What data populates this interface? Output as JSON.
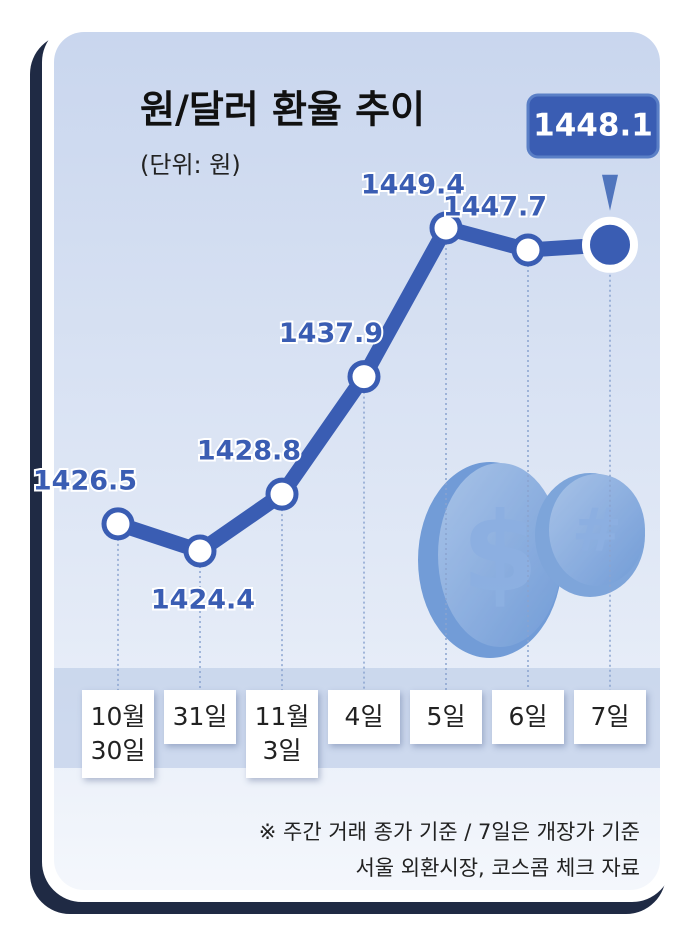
{
  "chart_data": {
    "type": "line",
    "title": "원/달러 환율 추이",
    "subtitle": "(단위: 원)",
    "categories": [
      "10월 30일",
      "31일",
      "11월 3일",
      "4일",
      "5일",
      "6일",
      "7일"
    ],
    "values": [
      1426.5,
      1424.4,
      1428.8,
      1437.9,
      1449.4,
      1447.7,
      1448.1
    ],
    "color": "#3a5db3",
    "notes": [
      "※ 주간 거래 종가 기준 / 7일은 개장가 기준",
      "서울 외환시장, 코스콤 체크 자료"
    ]
  }
}
